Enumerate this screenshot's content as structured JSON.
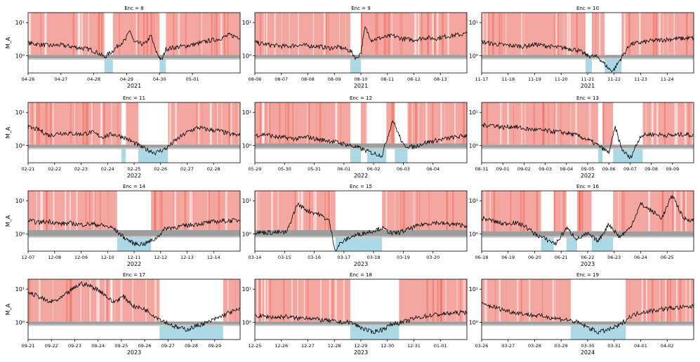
{
  "figure": {
    "ylabel": "M_A",
    "ytick_labels": [
      "10¹",
      "10⁰"
    ],
    "colors": {
      "region_supercritical": "#f4a7a0",
      "region_supercritical_dense": "#ef6b5e",
      "region_subcritical": "#add8e6",
      "critical_band": "#9e9e9e",
      "critical_band_light": "#c8c8c8",
      "series": "#000000",
      "axis": "#000000"
    }
  },
  "chart_data": [
    {
      "type": "line",
      "title": "Enc = 8",
      "year": "2021",
      "xticks": [
        "04-26",
        "04-27",
        "04-28",
        "04-29",
        "04-30",
        "05-01"
      ],
      "tick_frac": [
        0.0,
        0.155,
        0.31,
        0.465,
        0.62,
        0.775
      ],
      "ylim": [
        0.3,
        20
      ],
      "yscale": "log",
      "critical_band": [
        0.83,
        1.05
      ],
      "x": [
        0,
        0.05,
        0.1,
        0.15,
        0.2,
        0.25,
        0.3,
        0.33,
        0.36,
        0.4,
        0.43,
        0.46,
        0.48,
        0.5,
        0.55,
        0.58,
        0.6,
        0.63,
        0.65,
        0.7,
        0.75,
        0.8,
        0.85,
        0.9,
        0.95,
        1.0
      ],
      "y": [
        2.4,
        2.2,
        2.0,
        2.1,
        1.9,
        1.7,
        1.5,
        1.2,
        0.9,
        1.4,
        2.2,
        3.0,
        6.0,
        2.5,
        2.2,
        4.0,
        1.5,
        0.7,
        1.6,
        1.8,
        2.0,
        2.3,
        2.8,
        3.2,
        4.2,
        3.6
      ],
      "sub_intervals": [
        [
          0.36,
          0.4
        ],
        [
          0.62,
          0.65
        ]
      ]
    },
    {
      "type": "line",
      "title": "Enc = 9",
      "year": "2021",
      "xticks": [
        "08-06",
        "08-07",
        "08-08",
        "08-09",
        "08-10",
        "08-11",
        "08-12",
        "08-13"
      ],
      "tick_frac": [
        0.0,
        0.125,
        0.25,
        0.375,
        0.5,
        0.625,
        0.75,
        0.875
      ],
      "ylim": [
        0.3,
        20
      ],
      "yscale": "log",
      "critical_band": [
        0.85,
        1.05
      ],
      "x": [
        0,
        0.05,
        0.1,
        0.15,
        0.2,
        0.25,
        0.3,
        0.35,
        0.4,
        0.45,
        0.48,
        0.5,
        0.52,
        0.55,
        0.6,
        0.65,
        0.7,
        0.75,
        0.8,
        0.85,
        0.9,
        0.95,
        1.0
      ],
      "y": [
        2.5,
        2.2,
        2.0,
        1.9,
        2.1,
        2.0,
        1.9,
        1.7,
        1.8,
        1.4,
        0.8,
        1.3,
        7.0,
        3.0,
        3.5,
        4.0,
        3.2,
        3.0,
        3.5,
        3.3,
        3.8,
        4.2,
        4.6
      ],
      "sub_intervals": [
        [
          0.45,
          0.5
        ]
      ]
    },
    {
      "type": "line",
      "title": "Enc = 10",
      "year": "2021",
      "xticks": [
        "11-17",
        "11-18",
        "11-19",
        "11-20",
        "11-21",
        "11-22",
        "11-23",
        "11-24"
      ],
      "tick_frac": [
        0.0,
        0.125,
        0.25,
        0.375,
        0.5,
        0.625,
        0.75,
        0.875
      ],
      "ylim": [
        0.3,
        20
      ],
      "yscale": "log",
      "critical_band": [
        0.85,
        1.05
      ],
      "x": [
        0,
        0.05,
        0.1,
        0.15,
        0.2,
        0.25,
        0.3,
        0.35,
        0.4,
        0.45,
        0.5,
        0.55,
        0.6,
        0.62,
        0.65,
        0.7,
        0.75,
        0.8,
        0.85,
        0.9,
        0.95,
        1.0
      ],
      "y": [
        2.6,
        2.3,
        2.1,
        2.0,
        1.9,
        2.2,
        2.0,
        1.8,
        1.7,
        1.5,
        1.0,
        0.9,
        0.4,
        0.35,
        0.7,
        2.2,
        2.5,
        2.8,
        3.0,
        3.2,
        3.3,
        3.4
      ],
      "sub_intervals": [
        [
          0.49,
          0.52
        ],
        [
          0.58,
          0.66
        ]
      ]
    },
    {
      "type": "line",
      "title": "Enc = 11",
      "year": "2022",
      "xticks": [
        "02-21",
        "02-22",
        "02-23",
        "02-24",
        "02-25",
        "02-26",
        "02-27",
        "02-28"
      ],
      "tick_frac": [
        0.0,
        0.125,
        0.25,
        0.375,
        0.5,
        0.625,
        0.75,
        0.875
      ],
      "ylim": [
        0.3,
        20
      ],
      "yscale": "log",
      "critical_band": [
        0.85,
        1.05
      ],
      "x": [
        0,
        0.05,
        0.1,
        0.15,
        0.2,
        0.25,
        0.3,
        0.35,
        0.4,
        0.45,
        0.5,
        0.55,
        0.6,
        0.65,
        0.7,
        0.75,
        0.8,
        0.85,
        0.9,
        0.95,
        1.0
      ],
      "y": [
        3.5,
        3.0,
        2.0,
        2.4,
        2.3,
        2.2,
        2.5,
        1.8,
        2.2,
        1.8,
        1.2,
        0.8,
        0.6,
        0.8,
        1.5,
        2.5,
        3.5,
        3.0,
        2.8,
        2.2,
        2.0
      ],
      "sub_intervals": [
        [
          0.44,
          0.46
        ],
        [
          0.52,
          0.66
        ]
      ]
    },
    {
      "type": "line",
      "title": "Enc = 12",
      "year": "2022",
      "xticks": [
        "05-29",
        "05-30",
        "05-31",
        "06-01",
        "06-02",
        "06-03",
        "06-04"
      ],
      "tick_frac": [
        0.0,
        0.14,
        0.28,
        0.42,
        0.56,
        0.7,
        0.84
      ],
      "ylim": [
        0.3,
        20
      ],
      "yscale": "log",
      "critical_band": [
        0.85,
        1.15
      ],
      "x": [
        0,
        0.05,
        0.1,
        0.15,
        0.2,
        0.25,
        0.3,
        0.35,
        0.4,
        0.45,
        0.5,
        0.55,
        0.6,
        0.65,
        0.7,
        0.75,
        0.8,
        0.85,
        0.9,
        0.95,
        1.0
      ],
      "y": [
        2.0,
        2.2,
        1.8,
        1.7,
        1.6,
        1.8,
        1.5,
        1.4,
        1.2,
        1.0,
        0.8,
        0.6,
        0.5,
        6.0,
        1.0,
        0.9,
        1.2,
        1.4,
        1.6,
        1.8,
        2.0
      ],
      "sub_intervals": [
        [
          0.45,
          0.5
        ],
        [
          0.53,
          0.62
        ],
        [
          0.66,
          0.72
        ]
      ]
    },
    {
      "type": "line",
      "title": "Enc = 13",
      "year": "2022",
      "xticks": [
        "08-31",
        "09-01",
        "09-02",
        "09-03",
        "09-04",
        "09-05",
        "09-06",
        "09-07",
        "09-08",
        "09-09"
      ],
      "tick_frac": [
        0.0,
        0.1,
        0.2,
        0.3,
        0.4,
        0.5,
        0.6,
        0.7,
        0.8,
        0.9
      ],
      "ylim": [
        0.3,
        20
      ],
      "yscale": "log",
      "critical_band": [
        0.85,
        1.05
      ],
      "x": [
        0,
        0.05,
        0.1,
        0.15,
        0.2,
        0.25,
        0.3,
        0.35,
        0.4,
        0.45,
        0.5,
        0.55,
        0.6,
        0.63,
        0.66,
        0.7,
        0.75,
        0.8,
        0.85,
        0.9,
        0.95,
        1.0
      ],
      "y": [
        4.0,
        4.2,
        3.5,
        3.8,
        3.2,
        3.0,
        2.8,
        2.6,
        2.4,
        2.0,
        1.5,
        1.0,
        0.6,
        3.5,
        0.8,
        0.4,
        2.0,
        2.2,
        2.1,
        2.0,
        2.2,
        2.0
      ],
      "sub_intervals": [
        [
          0.55,
          0.57
        ],
        [
          0.62,
          0.76
        ]
      ]
    },
    {
      "type": "line",
      "title": "Enc = 14",
      "year": "2022",
      "xticks": [
        "12-07",
        "12-08",
        "12-09",
        "12-10",
        "12-11",
        "12-12",
        "12-13",
        "12-14"
      ],
      "tick_frac": [
        0.0,
        0.125,
        0.25,
        0.375,
        0.5,
        0.625,
        0.75,
        0.875
      ],
      "ylim": [
        0.3,
        20
      ],
      "yscale": "log",
      "critical_band": [
        0.85,
        1.3
      ],
      "x": [
        0,
        0.05,
        0.1,
        0.15,
        0.2,
        0.25,
        0.3,
        0.35,
        0.4,
        0.45,
        0.5,
        0.55,
        0.6,
        0.65,
        0.7,
        0.75,
        0.8,
        0.85,
        0.9,
        0.95,
        1.0
      ],
      "y": [
        2.5,
        2.2,
        2.4,
        2.0,
        2.1,
        1.9,
        2.0,
        1.8,
        1.5,
        0.8,
        0.5,
        0.5,
        0.7,
        1.5,
        1.6,
        1.8,
        2.0,
        2.2,
        2.4,
        2.5,
        2.6
      ],
      "sub_intervals": [
        [
          0.42,
          0.58
        ]
      ]
    },
    {
      "type": "line",
      "title": "Enc = 15",
      "year": "2023",
      "xticks": [
        "03-14",
        "03-15",
        "03-16",
        "03-17",
        "03-18",
        "03-19",
        "03-20"
      ],
      "tick_frac": [
        0.0,
        0.14,
        0.28,
        0.42,
        0.56,
        0.7,
        0.84
      ],
      "ylim": [
        0.3,
        20
      ],
      "yscale": "log",
      "critical_band": [
        0.85,
        1.3
      ],
      "x": [
        0,
        0.05,
        0.1,
        0.15,
        0.2,
        0.25,
        0.3,
        0.35,
        0.38,
        0.4,
        0.45,
        0.5,
        0.55,
        0.6,
        0.65,
        0.7,
        0.75,
        0.8,
        0.85,
        0.9,
        0.95,
        1.0
      ],
      "y": [
        1.1,
        1.1,
        1.1,
        1.1,
        8.0,
        5.0,
        4.0,
        2.5,
        0.3,
        0.5,
        0.8,
        1.0,
        1.2,
        1.5,
        1.0,
        1.2,
        1.6,
        2.0,
        2.2,
        2.0,
        1.9,
        1.8
      ],
      "sub_intervals": [
        [
          0.38,
          0.6
        ]
      ]
    },
    {
      "type": "line",
      "title": "Enc = 16",
      "year": "2023",
      "xticks": [
        "06-18",
        "06-19",
        "06-20",
        "06-21",
        "06-22",
        "06-23",
        "06-24",
        "06-25"
      ],
      "tick_frac": [
        0.0,
        0.125,
        0.25,
        0.375,
        0.5,
        0.625,
        0.75,
        0.875
      ],
      "ylim": [
        0.3,
        20
      ],
      "yscale": "log",
      "critical_band": [
        0.85,
        1.2
      ],
      "x": [
        0,
        0.05,
        0.1,
        0.15,
        0.2,
        0.25,
        0.3,
        0.35,
        0.4,
        0.45,
        0.5,
        0.55,
        0.6,
        0.65,
        0.7,
        0.75,
        0.8,
        0.85,
        0.9,
        0.95,
        1.0
      ],
      "y": [
        3.0,
        2.5,
        2.0,
        2.2,
        1.8,
        1.0,
        0.7,
        0.5,
        1.5,
        0.7,
        1.0,
        0.6,
        2.0,
        0.8,
        1.5,
        8.0,
        5.0,
        3.0,
        15.0,
        3.0,
        2.5
      ],
      "sub_intervals": [
        [
          0.28,
          0.34
        ],
        [
          0.4,
          0.45
        ],
        [
          0.52,
          0.62
        ]
      ]
    },
    {
      "type": "line",
      "title": "Enc = 17",
      "year": "2023",
      "xticks": [
        "09-21",
        "09-22",
        "09-23",
        "09-24",
        "09-25",
        "09-26",
        "09-27",
        "09-28",
        "09-29"
      ],
      "tick_frac": [
        0.0,
        0.11,
        0.22,
        0.33,
        0.44,
        0.55,
        0.66,
        0.77,
        0.88
      ],
      "ylim": [
        0.3,
        20
      ],
      "yscale": "log",
      "critical_band": [
        0.85,
        1.05
      ],
      "x": [
        0,
        0.05,
        0.1,
        0.15,
        0.2,
        0.25,
        0.3,
        0.35,
        0.4,
        0.45,
        0.5,
        0.55,
        0.6,
        0.65,
        0.7,
        0.75,
        0.8,
        0.85,
        0.9,
        0.95,
        1.0
      ],
      "y": [
        8.0,
        6.0,
        4.0,
        5.0,
        9.0,
        15.0,
        12.0,
        8.0,
        4.0,
        6.0,
        3.0,
        2.5,
        1.5,
        1.0,
        0.7,
        0.6,
        0.8,
        1.0,
        1.4,
        2.0,
        2.4
      ],
      "sub_intervals": [
        [
          0.62,
          0.92
        ]
      ]
    },
    {
      "type": "line",
      "title": "Enc = 18",
      "year": "2023",
      "xticks": [
        "12-25",
        "12-26",
        "12-27",
        "12-28",
        "12-29",
        "12-30",
        "12-31",
        "01-01"
      ],
      "tick_frac": [
        0.0,
        0.125,
        0.25,
        0.375,
        0.5,
        0.625,
        0.75,
        0.875
      ],
      "ylim": [
        0.3,
        20
      ],
      "yscale": "log",
      "critical_band": [
        0.85,
        1.05
      ],
      "x": [
        0,
        0.05,
        0.1,
        0.15,
        0.2,
        0.25,
        0.3,
        0.35,
        0.4,
        0.45,
        0.5,
        0.55,
        0.6,
        0.65,
        0.7,
        0.75,
        0.8,
        0.85,
        0.9,
        0.95,
        1.0
      ],
      "y": [
        1.6,
        1.5,
        1.4,
        1.5,
        1.3,
        1.4,
        1.2,
        1.1,
        1.0,
        1.0,
        0.7,
        0.5,
        0.6,
        0.9,
        1.0,
        1.3,
        1.5,
        1.7,
        1.8,
        1.9,
        2.0
      ],
      "sub_intervals": [
        [
          0.45,
          0.68
        ]
      ]
    },
    {
      "type": "line",
      "title": "Enc = 19",
      "year": "2024",
      "xticks": [
        "03-26",
        "03-27",
        "03-28",
        "03-29",
        "03-30",
        "03-31",
        "04-01",
        "04-02"
      ],
      "tick_frac": [
        0.0,
        0.125,
        0.25,
        0.375,
        0.5,
        0.625,
        0.75,
        0.875
      ],
      "ylim": [
        0.3,
        20
      ],
      "yscale": "log",
      "critical_band": [
        0.85,
        1.05
      ],
      "x": [
        0,
        0.05,
        0.1,
        0.15,
        0.2,
        0.25,
        0.3,
        0.35,
        0.4,
        0.45,
        0.5,
        0.55,
        0.6,
        0.65,
        0.7,
        0.75,
        0.8,
        0.85,
        0.9,
        0.95,
        1.0
      ],
      "y": [
        3.5,
        3.0,
        2.4,
        2.0,
        1.8,
        1.6,
        1.5,
        1.3,
        1.2,
        1.0,
        0.7,
        0.5,
        0.6,
        0.8,
        1.5,
        2.0,
        2.2,
        2.5,
        2.7,
        2.8,
        3.0
      ],
      "sub_intervals": [
        [
          0.42,
          0.68
        ]
      ]
    }
  ]
}
